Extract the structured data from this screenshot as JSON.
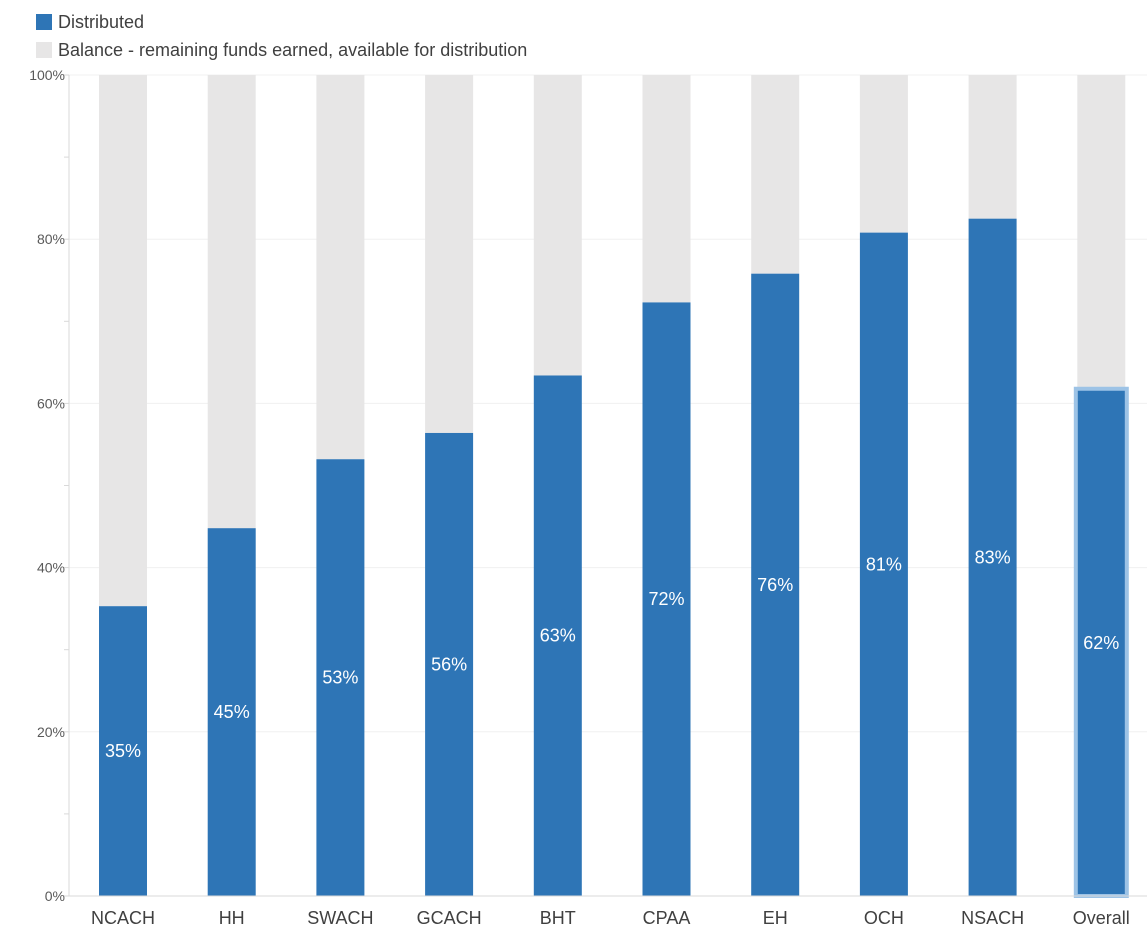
{
  "chart_data": {
    "type": "bar",
    "stacked": true,
    "percent_axis": true,
    "categories": [
      "NCACH",
      "HH",
      "SWACH",
      "GCACH",
      "BHT",
      "CPAA",
      "EH",
      "OCH",
      "NSACH",
      "Overall"
    ],
    "series": [
      {
        "name": "Distributed",
        "color": "#2e75b6",
        "values": [
          35.3,
          44.8,
          53.2,
          56.4,
          63.4,
          72.3,
          75.8,
          80.8,
          82.5,
          61.6
        ],
        "labels": [
          "35%",
          "45%",
          "53%",
          "56%",
          "63%",
          "72%",
          "76%",
          "81%",
          "83%",
          "62%"
        ]
      },
      {
        "name": "Balance - remaining funds earned, available for distribution",
        "color": "#e7e6e6",
        "values": [
          64.7,
          55.2,
          46.8,
          43.6,
          36.6,
          27.7,
          24.2,
          19.2,
          17.5,
          38.4
        ]
      }
    ],
    "ylim": [
      0,
      100
    ],
    "yticks": [
      0,
      20,
      40,
      60,
      80,
      100
    ],
    "ytick_labels": [
      "0%",
      "20%",
      "40%",
      "60%",
      "80%",
      "100%"
    ],
    "highlighted_category": "Overall",
    "highlight_color": "#9dc3e6",
    "legend_position": "top-left",
    "grid": true
  }
}
